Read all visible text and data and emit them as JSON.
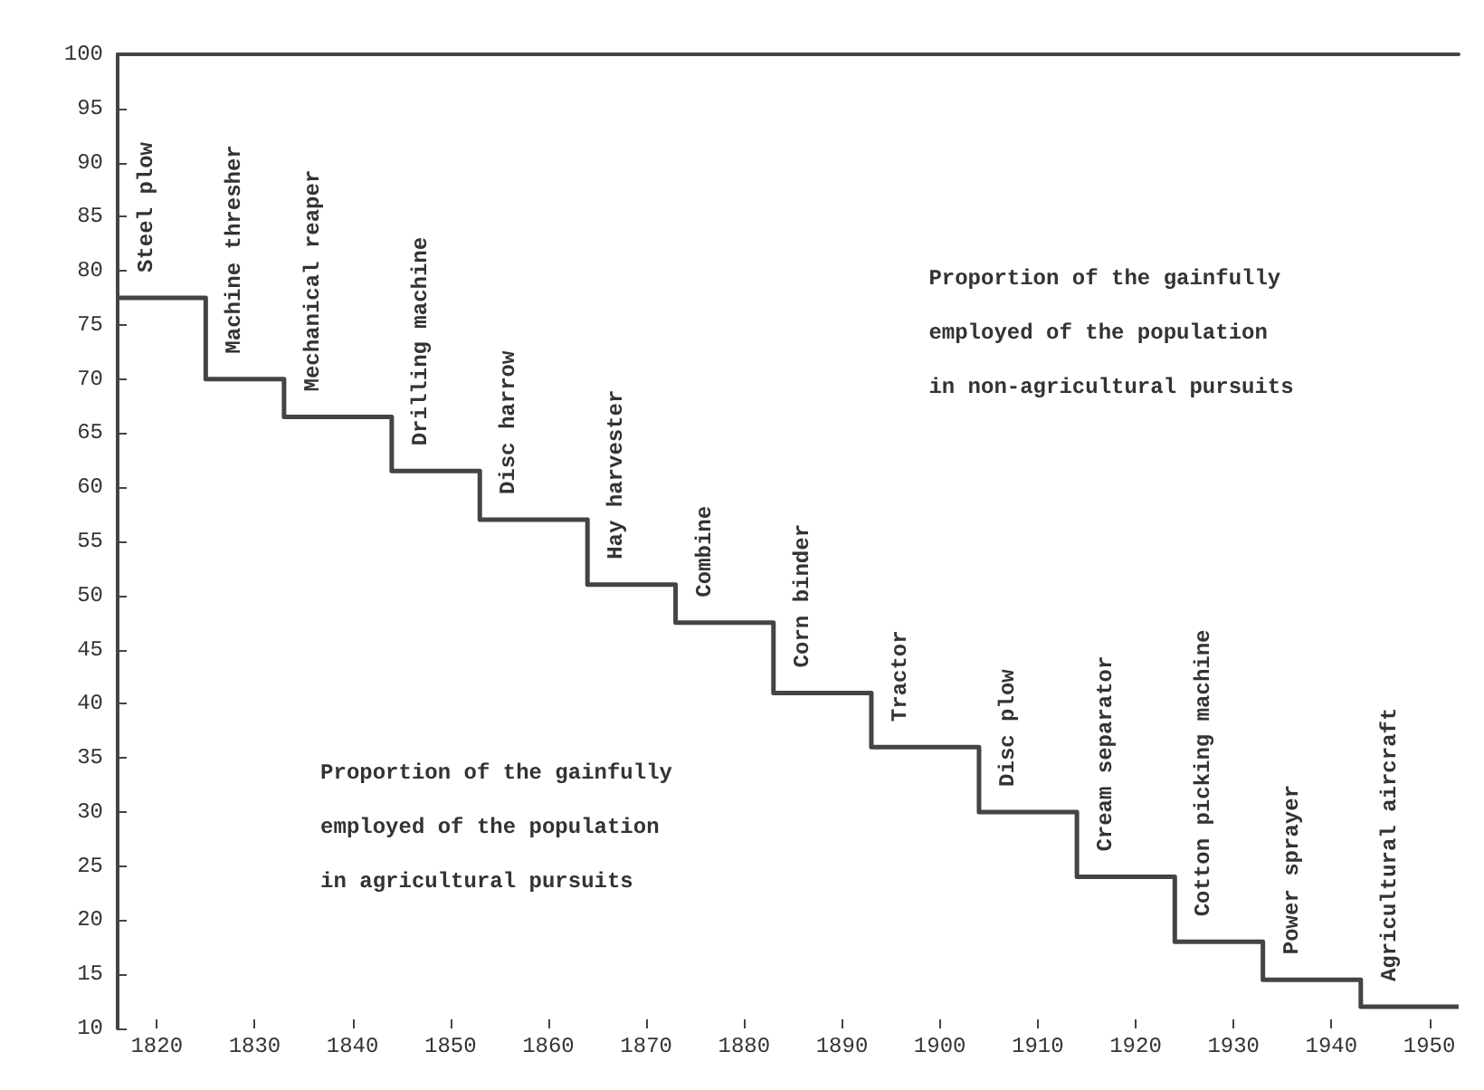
{
  "chart_data": {
    "type": "step",
    "x": [
      1816,
      1825,
      1833,
      1844,
      1853,
      1864,
      1873,
      1883,
      1893,
      1904,
      1914,
      1924,
      1933,
      1943,
      1953
    ],
    "values": [
      77.5,
      70,
      66.5,
      61.5,
      57,
      51,
      47.5,
      41,
      36,
      30,
      24,
      18,
      14.5,
      12,
      12
    ],
    "color": "#444444",
    "xlim": [
      1816,
      1953
    ],
    "xticks": [
      1820,
      1830,
      1840,
      1850,
      1860,
      1870,
      1880,
      1890,
      1900,
      1910,
      1920,
      1930,
      1940,
      1950
    ],
    "ylim": [
      10,
      100
    ],
    "yticks": [
      10,
      15,
      20,
      25,
      30,
      35,
      40,
      45,
      50,
      55,
      60,
      65,
      70,
      75,
      80,
      85,
      90,
      95,
      100
    ],
    "grid": false,
    "marker": "none",
    "line_style": "solid",
    "annotations": [
      "Steel plow",
      "Machine thresher",
      "Mechanical reaper",
      "Drilling machine",
      "Disc harrow",
      "Hay harvester",
      "Combine",
      "Corn binder",
      "Tractor",
      "Disc plow",
      "Cream separator",
      "Cotton picking machine",
      "Power sprayer",
      "Agricultural aircraft",
      "Proportion of the gainfully\nemployed of the population\nin non-agricultural pursuits",
      "Proportion of the gainfully\nemployed of the population\nin agricultural pursuits"
    ]
  }
}
